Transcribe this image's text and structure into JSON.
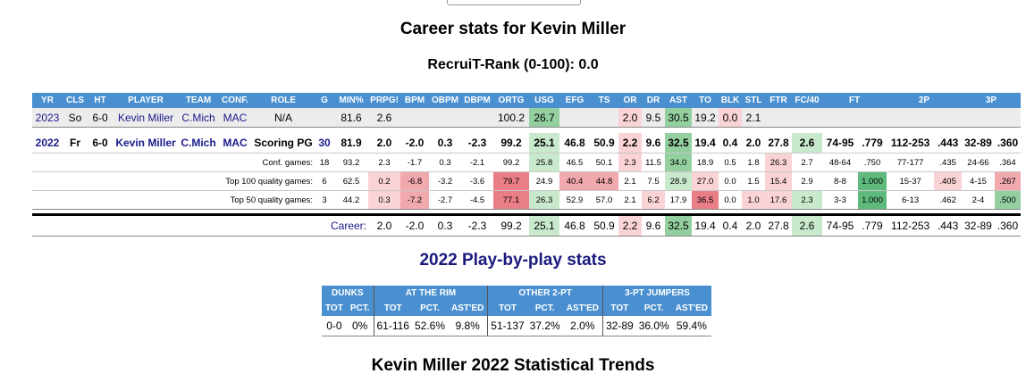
{
  "page": {
    "title": "Career stats for Kevin Miller",
    "recruit_rank": "RecruiT-Rank (0-100): 0.0",
    "pbp_title": "2022 Play-by-play stats",
    "trends_title": "Kevin Miller 2022 Statistical Trends"
  },
  "colors": {
    "header_bg": "#4a90d0",
    "green_strong": "#5fba7d",
    "green_mid": "#93cf9f",
    "green_light": "#c9e9cc",
    "red_strong": "#ea7e86",
    "red_mid": "#f2a9ae",
    "red_light": "#f9d3d6",
    "link_blue": "#1a1a8a"
  },
  "stats_table": {
    "headers": [
      "YR",
      "CLS",
      "HT",
      "PLAYER",
      "TEAM",
      "CONF.",
      "ROLE",
      "G",
      "MIN%",
      "PRPG!",
      "BPM",
      "OBPM",
      "DBPM",
      "ORTG",
      "USG",
      "EFG",
      "TS",
      "OR",
      "DR",
      "AST",
      "TO",
      "BLK",
      "STL",
      "FTR",
      "FC/40",
      "FT",
      "",
      "2P",
      "",
      "3P",
      ""
    ],
    "career_row": [
      "2023",
      "So",
      "6-0",
      "Kevin Miller",
      "C.Mich",
      "MAC",
      "N/A",
      "",
      "81.6",
      "2.6",
      "",
      "",
      "",
      "100.2",
      "26.7",
      "",
      "",
      "2.0",
      "9.5",
      "30.5",
      "19.2",
      "0.0",
      "2.1",
      "",
      "",
      "",
      "",
      "",
      "",
      "",
      ""
    ],
    "season_row": [
      "2022",
      "Fr",
      "6-0",
      "Kevin Miller",
      "C.Mich",
      "MAC",
      "Scoring PG",
      "30",
      "81.9",
      "2.0",
      "-2.0",
      "0.3",
      "-2.3",
      "99.2",
      "25.1",
      "46.8",
      "50.9",
      "2.2",
      "9.6",
      "32.5",
      "19.4",
      "0.4",
      "2.0",
      "27.8",
      "2.6",
      "74-95",
      ".779",
      "112-253",
      ".443",
      "32-89",
      ".360"
    ],
    "splits": [
      {
        "label": "Conf. games:",
        "values": [
          "18",
          "93.2",
          "2.3",
          "-1.7",
          "0.3",
          "-2.1",
          "99.2",
          "25.8",
          "46.5",
          "50.1",
          "2.3",
          "11.5",
          "34.0",
          "18.9",
          "0.5",
          "1.8",
          "26.3",
          "2.7",
          "48-64",
          ".750",
          "77-177",
          ".435",
          "24-66",
          ".364"
        ]
      },
      {
        "label": "Top 100 quality games:",
        "values": [
          "6",
          "62.5",
          "0.2",
          "-6.8",
          "-3.2",
          "-3.6",
          "79.7",
          "24.9",
          "40.4",
          "44.8",
          "2.1",
          "7.5",
          "28.9",
          "27.0",
          "0.0",
          "1.5",
          "15.4",
          "2.9",
          "8-8",
          "1.000",
          "15-37",
          ".405",
          "4-15",
          ".267"
        ]
      },
      {
        "label": "Top 50 quality games:",
        "values": [
          "3",
          "44.2",
          "0.3",
          "-7.2",
          "-2.7",
          "-4.5",
          "77.1",
          "26.3",
          "52.9",
          "57.0",
          "2.1",
          "6.2",
          "17.9",
          "36.5",
          "0.0",
          "1.0",
          "17.6",
          "2.3",
          "3-3",
          "1.000",
          "6-13",
          ".462",
          "2-4",
          ".500"
        ]
      }
    ],
    "career_total": {
      "label": "Career:",
      "values": [
        "2.0",
        "-2.0",
        "0.3",
        "-2.3",
        "99.2",
        "25.1",
        "46.8",
        "50.9",
        "2.2",
        "9.6",
        "32.5",
        "19.4",
        "0.4",
        "2.0",
        "27.8",
        "2.6",
        "74-95",
        ".779",
        "112-253",
        ".443",
        "32-89",
        ".360"
      ]
    }
  },
  "pbp_table": {
    "groups": [
      "DUNKS",
      "AT THE RIM",
      "OTHER 2-PT",
      "3-PT JUMPERS"
    ],
    "subheaders": [
      "TOT",
      "PCT.",
      "TOT",
      "PCT.",
      "AST'ED",
      "TOT",
      "PCT.",
      "AST'ED",
      "TOT",
      "PCT.",
      "AST'ED"
    ],
    "row": [
      "0-0",
      "0%",
      "61-116",
      "52.6%",
      "9.8%",
      "51-137",
      "37.2%",
      "2.0%",
      "32-89",
      "36.0%",
      "59.4%"
    ]
  }
}
